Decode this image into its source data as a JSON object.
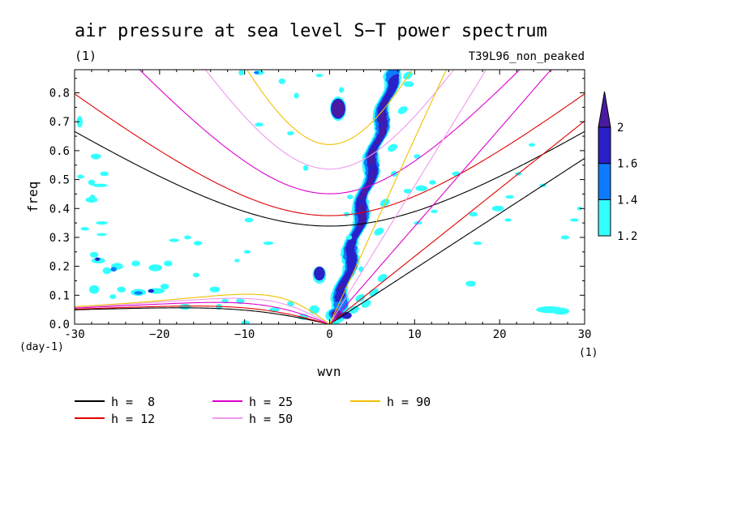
{
  "chart_data": {
    "type": "heatmap",
    "title": "air pressure at sea level S−T power spectrum",
    "units_label": "(1)",
    "run_label": "T39L96_non_peaked",
    "xlabel": "wvn",
    "ylabel": "freq",
    "x_unit_label": "(1)",
    "y_unit_label": "(day-1)",
    "xlim": [
      -30,
      30
    ],
    "ylim": [
      0,
      0.88
    ],
    "x_ticks": [
      -30,
      -20,
      -10,
      0,
      10,
      20,
      30
    ],
    "x_tick_labels": [
      "-30",
      "−20",
      "−10",
      "0",
      "10",
      "20",
      "30"
    ],
    "y_ticks": [
      0,
      0.1,
      0.2,
      0.3,
      0.4,
      0.5,
      0.6,
      0.7,
      0.8
    ],
    "y_tick_labels": [
      "0.0",
      "0.1",
      "0.2",
      "0.3",
      "0.4",
      "0.5",
      "0.6",
      "0.7",
      "0.8"
    ],
    "colorbar": {
      "levels": [
        1.2,
        1.4,
        1.6,
        2
      ],
      "labels": [
        "1.2",
        "1.4",
        "1.6",
        "2"
      ],
      "colors": [
        "#33ffff",
        "#0d7bff",
        "#2a20c8",
        "#4a1aa0"
      ]
    },
    "contour_fill_levels": [
      {
        "min": 1.2,
        "color": "#33ffff"
      },
      {
        "min": 1.4,
        "color": "#0d7bff"
      },
      {
        "min": 1.6,
        "color": "#2a20c8"
      },
      {
        "min": 2.0,
        "color": "#4a1aa0"
      }
    ],
    "dispersion_curves": [
      {
        "label": "h =  8",
        "h": 8,
        "color": "#000000"
      },
      {
        "label": "h = 12",
        "h": 12,
        "color": "#e00000"
      },
      {
        "label": "h = 25",
        "h": 25,
        "color": "#dd00cc"
      },
      {
        "label": "h = 50",
        "h": 50,
        "color": "#ee99ee"
      },
      {
        "label": "h = 90",
        "h": 90,
        "color": "#f0c000"
      }
    ]
  }
}
